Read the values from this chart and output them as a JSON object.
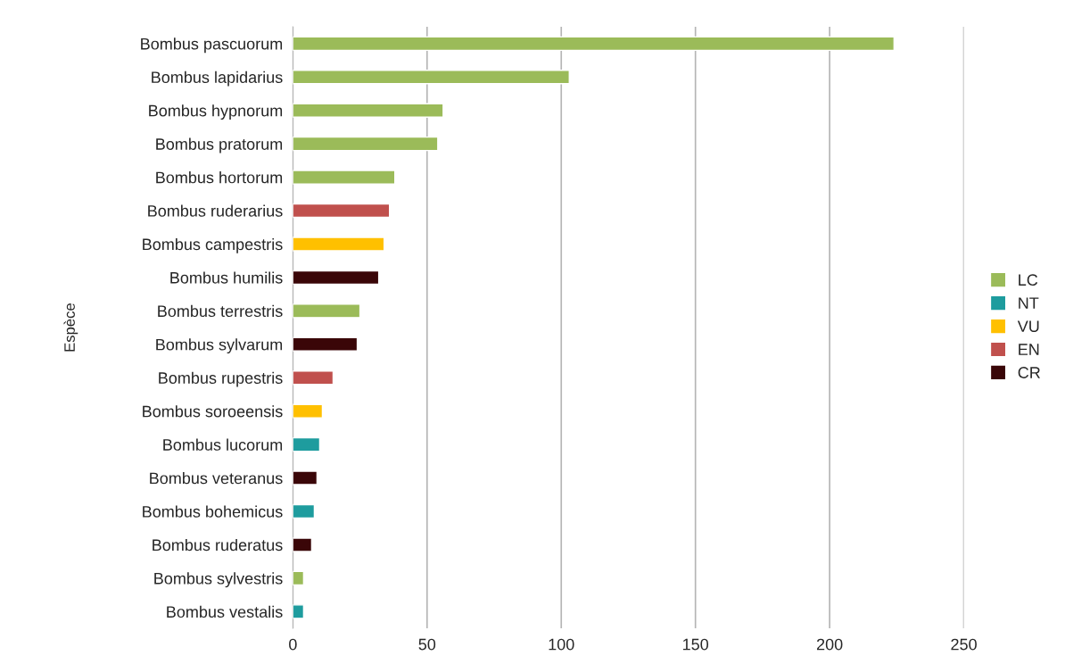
{
  "chart_data": {
    "type": "bar",
    "orientation": "horizontal",
    "ylabel": "Espèce",
    "categories": [
      "Bombus pascuorum",
      "Bombus lapidarius",
      "Bombus hypnorum",
      "Bombus pratorum",
      "Bombus hortorum",
      "Bombus ruderarius",
      "Bombus campestris",
      "Bombus humilis",
      "Bombus terrestris",
      "Bombus sylvarum",
      "Bombus rupestris",
      "Bombus soroeensis",
      "Bombus lucorum",
      "Bombus veteranus",
      "Bombus bohemicus",
      "Bombus ruderatus",
      "Bombus sylvestris",
      "Bombus vestalis"
    ],
    "series": [
      {
        "name": "LC",
        "color": "#9bbb59",
        "values": [
          224,
          103,
          56,
          54,
          38,
          null,
          null,
          null,
          25,
          null,
          null,
          null,
          null,
          null,
          null,
          null,
          4,
          null
        ]
      },
      {
        "name": "NT",
        "color": "#1e9c9e",
        "values": [
          null,
          null,
          null,
          null,
          null,
          null,
          null,
          null,
          null,
          null,
          null,
          null,
          10,
          null,
          8,
          null,
          null,
          4
        ]
      },
      {
        "name": "VU",
        "color": "#ffc000",
        "values": [
          null,
          null,
          null,
          null,
          null,
          null,
          34,
          null,
          null,
          null,
          null,
          11,
          null,
          null,
          null,
          null,
          null,
          null
        ]
      },
      {
        "name": "EN",
        "color": "#c0504d",
        "values": [
          null,
          null,
          null,
          null,
          null,
          36,
          null,
          null,
          null,
          null,
          15,
          null,
          null,
          null,
          null,
          null,
          null,
          null
        ]
      },
      {
        "name": "CR",
        "color": "#3a0608",
        "values": [
          null,
          null,
          null,
          null,
          null,
          null,
          null,
          32,
          null,
          24,
          null,
          null,
          null,
          9,
          null,
          7,
          null,
          null
        ]
      }
    ],
    "xlim": [
      0,
      250
    ],
    "xticks": [
      0,
      50,
      100,
      150,
      200,
      250
    ],
    "grid": "x",
    "legend": "right"
  }
}
